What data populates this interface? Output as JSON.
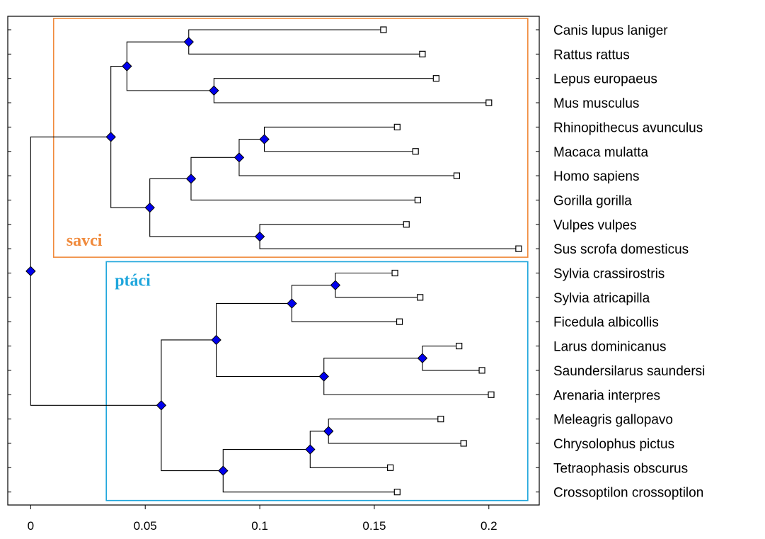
{
  "chart_data": {
    "type": "dendrogram",
    "xlim": [
      -0.01,
      0.222
    ],
    "xticks": [
      {
        "value": 0,
        "label": "0"
      },
      {
        "value": 0.05,
        "label": "0.05"
      },
      {
        "value": 0.1,
        "label": "0.1"
      },
      {
        "value": 0.15,
        "label": "0.15"
      },
      {
        "value": 0.2,
        "label": "0.2"
      }
    ],
    "node_color": "#0000ee",
    "leaves": [
      {
        "name": "Canis lupus laniger",
        "x": 0.154
      },
      {
        "name": "Rattus rattus",
        "x": 0.171
      },
      {
        "name": "Lepus europaeus",
        "x": 0.177
      },
      {
        "name": "Mus musculus",
        "x": 0.2
      },
      {
        "name": "Rhinopithecus avunculus",
        "x": 0.16
      },
      {
        "name": "Macaca mulatta",
        "x": 0.168
      },
      {
        "name": "Homo sapiens",
        "x": 0.186
      },
      {
        "name": "Gorilla gorilla",
        "x": 0.169
      },
      {
        "name": "Vulpes vulpes",
        "x": 0.164
      },
      {
        "name": "Sus scrofa domesticus",
        "x": 0.213
      },
      {
        "name": "Sylvia crassirostris",
        "x": 0.159
      },
      {
        "name": "Sylvia atricapilla",
        "x": 0.17
      },
      {
        "name": "Ficedula albicollis",
        "x": 0.161
      },
      {
        "name": "Larus dominicanus",
        "x": 0.187
      },
      {
        "name": "Saundersilarus saundersi",
        "x": 0.197
      },
      {
        "name": "Arenaria interpres",
        "x": 0.201
      },
      {
        "name": "Meleagris gallopavo",
        "x": 0.179
      },
      {
        "name": "Chrysolophus pictus",
        "x": 0.189
      },
      {
        "name": "Tetraophasis obscurus",
        "x": 0.157
      },
      {
        "name": "Crossoptilon crossoptilon",
        "x": 0.16
      }
    ],
    "nodes": [
      {
        "x": 0.069,
        "children": [
          "L0",
          "L1"
        ]
      },
      {
        "x": 0.08,
        "children": [
          "L2",
          "L3"
        ]
      },
      {
        "x": 0.042,
        "children": [
          "N0",
          "N1"
        ]
      },
      {
        "x": 0.102,
        "children": [
          "L4",
          "L5"
        ]
      },
      {
        "x": 0.091,
        "children": [
          "N3",
          "L6"
        ]
      },
      {
        "x": 0.07,
        "children": [
          "N4",
          "L7"
        ]
      },
      {
        "x": 0.1,
        "children": [
          "L8",
          "L9"
        ]
      },
      {
        "x": 0.052,
        "children": [
          "N5",
          "N6"
        ]
      },
      {
        "x": 0.035,
        "children": [
          "N2",
          "N7"
        ]
      },
      {
        "x": 0.133,
        "children": [
          "L10",
          "L11"
        ]
      },
      {
        "x": 0.114,
        "children": [
          "N9",
          "L12"
        ]
      },
      {
        "x": 0.171,
        "children": [
          "L13",
          "L14"
        ]
      },
      {
        "x": 0.128,
        "children": [
          "N11",
          "L15"
        ]
      },
      {
        "x": 0.081,
        "children": [
          "N10",
          "N12"
        ]
      },
      {
        "x": 0.13,
        "children": [
          "L16",
          "L17"
        ]
      },
      {
        "x": 0.122,
        "children": [
          "N14",
          "L18"
        ]
      },
      {
        "x": 0.084,
        "children": [
          "N15",
          "L19"
        ]
      },
      {
        "x": 0.057,
        "children": [
          "N13",
          "N16"
        ]
      },
      {
        "x": 0.0,
        "children": [
          "N8",
          "N17"
        ]
      }
    ],
    "groups": [
      {
        "label": "savci",
        "color": "#f08a3c",
        "leaf_range": [
          0,
          9
        ],
        "x_range": [
          0.01,
          0.217
        ]
      },
      {
        "label": "ptáci",
        "color": "#1fa6dc",
        "leaf_range": [
          10,
          19
        ],
        "x_range": [
          0.033,
          0.217
        ]
      }
    ]
  }
}
